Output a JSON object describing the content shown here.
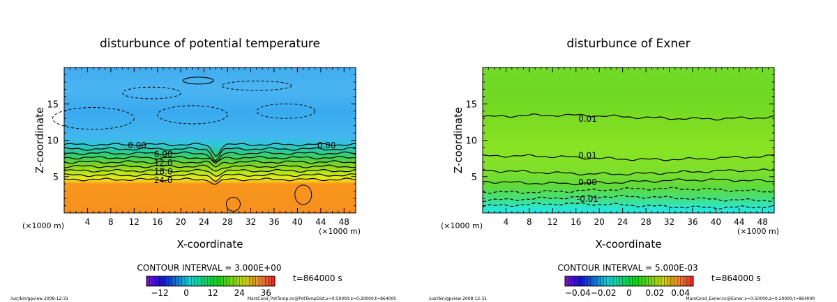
{
  "chart_data": [
    {
      "type": "heatmap",
      "title": "disturbunce of potential temperature",
      "xlabel": "X-coordinate",
      "ylabel": "Z-coordinate",
      "x_unit": "(×1000 m)",
      "xlim": [
        0,
        50
      ],
      "ylim": [
        0,
        20
      ],
      "xticks": [
        4,
        8,
        12,
        16,
        20,
        24,
        28,
        32,
        36,
        40,
        44,
        48
      ],
      "yticks": [
        5,
        10,
        15
      ],
      "contour_labels": [
        {
          "text": "0.00",
          "x": 12.5,
          "z": 9.4
        },
        {
          "text": "0.00",
          "x": 45,
          "z": 9.4
        },
        {
          "text": "6.00",
          "x": 17,
          "z": 8.2
        },
        {
          "text": "12.0",
          "x": 17,
          "z": 7.0
        },
        {
          "text": "18.0",
          "x": 17,
          "z": 5.8
        },
        {
          "text": "24.0",
          "x": 17,
          "z": 4.6
        }
      ],
      "contour_interval_text": "CONTOUR INTERVAL = 3.000E+00",
      "colorbar_ticks": [
        "−12",
        "0",
        "12",
        "24",
        "36"
      ],
      "colorbar_range": [
        -18,
        40
      ],
      "time_text": "t=864000 s",
      "footer_left": "/usr/bin/gpview   2008-12-31",
      "footer_right": "MarsCond_PotTemp.nc@PotTempDist,x=0:50000,z=0:20000,t=864000"
    },
    {
      "type": "heatmap",
      "title": "disturbunce of Exner",
      "xlabel": "X-coordinate",
      "ylabel": "Z-coordinate",
      "x_unit": "(×1000 m)",
      "xlim": [
        0,
        50
      ],
      "ylim": [
        0,
        20
      ],
      "xticks": [
        4,
        8,
        12,
        16,
        20,
        24,
        28,
        32,
        36,
        40,
        44,
        48
      ],
      "yticks": [
        5,
        10,
        15
      ],
      "contour_labels": [
        {
          "text": "0.01",
          "x": 18,
          "z": 13.0
        },
        {
          "text": "0.01",
          "x": 18,
          "z": 8.0
        },
        {
          "text": "0.00",
          "x": 18,
          "z": 4.3
        },
        {
          "text": "-0.01",
          "x": 18,
          "z": 2.0
        }
      ],
      "contour_interval_text": "CONTOUR INTERVAL = 5.000E-03",
      "colorbar_ticks": [
        "−0.04",
        "−0.02",
        "0",
        "0.02",
        "0.04"
      ],
      "colorbar_range": [
        -0.05,
        0.05
      ],
      "time_text": "t=864000 s",
      "footer_left": "/usr/bin/gpview   2008-12-31",
      "footer_right": "MarsCond_Exner.nc@Exner,x=0:50000,z=0:20000,t=864000"
    }
  ]
}
